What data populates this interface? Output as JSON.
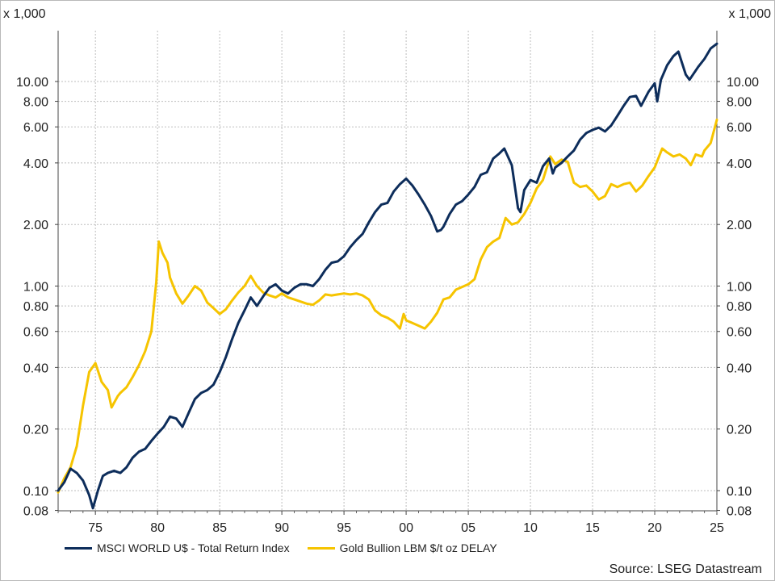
{
  "chart_data": {
    "type": "line",
    "y_scale": "log",
    "y_unit_note_left": "x 1,000",
    "y_unit_note_right": "x 1,000",
    "ylim": [
      0.08,
      16
    ],
    "xlim": [
      1972.0,
      2025.0
    ],
    "y_ticks": [
      {
        "value": 10,
        "label": "10.00"
      },
      {
        "value": 8,
        "label": "8.00"
      },
      {
        "value": 6,
        "label": "6.00"
      },
      {
        "value": 4,
        "label": "4.00"
      },
      {
        "value": 2,
        "label": "2.00"
      },
      {
        "value": 1,
        "label": "1.00"
      },
      {
        "value": 0.8,
        "label": "0.80"
      },
      {
        "value": 0.6,
        "label": "0.60"
      },
      {
        "value": 0.4,
        "label": "0.40"
      },
      {
        "value": 0.2,
        "label": "0.20"
      },
      {
        "value": 0.1,
        "label": "0.10"
      },
      {
        "value": 0.08,
        "label": "0.08"
      }
    ],
    "x_ticks": [
      {
        "value": 1975,
        "label": "75"
      },
      {
        "value": 1980,
        "label": "80"
      },
      {
        "value": 1985,
        "label": "85"
      },
      {
        "value": 1990,
        "label": "90"
      },
      {
        "value": 1995,
        "label": "95"
      },
      {
        "value": 2000,
        "label": "00"
      },
      {
        "value": 2005,
        "label": "05"
      },
      {
        "value": 2010,
        "label": "10"
      },
      {
        "value": 2015,
        "label": "15"
      },
      {
        "value": 2020,
        "label": "20"
      },
      {
        "value": 2025,
        "label": "25"
      }
    ],
    "grid": true,
    "legend_position": "bottom-left",
    "series": [
      {
        "name": "MSCI WORLD U$ - Total Return Index",
        "color": "#0d2d5b",
        "points": [
          [
            1972.0,
            0.1
          ],
          [
            1972.5,
            0.11
          ],
          [
            1973.0,
            0.128
          ],
          [
            1973.5,
            0.122
          ],
          [
            1974.0,
            0.112
          ],
          [
            1974.5,
            0.095
          ],
          [
            1974.8,
            0.082
          ],
          [
            1975.2,
            0.1
          ],
          [
            1975.6,
            0.118
          ],
          [
            1976.0,
            0.122
          ],
          [
            1976.5,
            0.125
          ],
          [
            1977.0,
            0.122
          ],
          [
            1977.5,
            0.13
          ],
          [
            1978.0,
            0.145
          ],
          [
            1978.5,
            0.155
          ],
          [
            1979.0,
            0.16
          ],
          [
            1979.5,
            0.175
          ],
          [
            1980.0,
            0.19
          ],
          [
            1980.5,
            0.205
          ],
          [
            1981.0,
            0.23
          ],
          [
            1981.5,
            0.225
          ],
          [
            1982.0,
            0.205
          ],
          [
            1982.5,
            0.24
          ],
          [
            1983.0,
            0.28
          ],
          [
            1983.5,
            0.3
          ],
          [
            1984.0,
            0.31
          ],
          [
            1984.5,
            0.33
          ],
          [
            1985.0,
            0.38
          ],
          [
            1985.5,
            0.45
          ],
          [
            1986.0,
            0.55
          ],
          [
            1986.5,
            0.66
          ],
          [
            1987.0,
            0.76
          ],
          [
            1987.5,
            0.88
          ],
          [
            1987.8,
            0.83
          ],
          [
            1988.0,
            0.8
          ],
          [
            1988.5,
            0.89
          ],
          [
            1989.0,
            0.98
          ],
          [
            1989.5,
            1.02
          ],
          [
            1990.0,
            0.95
          ],
          [
            1990.5,
            0.92
          ],
          [
            1991.0,
            0.98
          ],
          [
            1991.5,
            1.02
          ],
          [
            1992.0,
            1.02
          ],
          [
            1992.5,
            1.0
          ],
          [
            1993.0,
            1.08
          ],
          [
            1993.5,
            1.2
          ],
          [
            1994.0,
            1.3
          ],
          [
            1994.5,
            1.32
          ],
          [
            1995.0,
            1.4
          ],
          [
            1995.5,
            1.55
          ],
          [
            1996.0,
            1.68
          ],
          [
            1996.5,
            1.8
          ],
          [
            1997.0,
            2.05
          ],
          [
            1997.5,
            2.3
          ],
          [
            1998.0,
            2.5
          ],
          [
            1998.5,
            2.55
          ],
          [
            1999.0,
            2.9
          ],
          [
            1999.5,
            3.15
          ],
          [
            2000.0,
            3.35
          ],
          [
            2000.5,
            3.1
          ],
          [
            2001.0,
            2.8
          ],
          [
            2001.5,
            2.5
          ],
          [
            2002.0,
            2.2
          ],
          [
            2002.5,
            1.85
          ],
          [
            2002.8,
            1.88
          ],
          [
            2003.0,
            1.95
          ],
          [
            2003.5,
            2.25
          ],
          [
            2004.0,
            2.5
          ],
          [
            2004.5,
            2.6
          ],
          [
            2005.0,
            2.8
          ],
          [
            2005.5,
            3.05
          ],
          [
            2006.0,
            3.5
          ],
          [
            2006.5,
            3.6
          ],
          [
            2007.0,
            4.2
          ],
          [
            2007.5,
            4.45
          ],
          [
            2007.9,
            4.7
          ],
          [
            2008.5,
            3.9
          ],
          [
            2009.0,
            2.4
          ],
          [
            2009.2,
            2.3
          ],
          [
            2009.5,
            2.95
          ],
          [
            2010.0,
            3.3
          ],
          [
            2010.5,
            3.2
          ],
          [
            2011.0,
            3.85
          ],
          [
            2011.5,
            4.2
          ],
          [
            2011.8,
            3.55
          ],
          [
            2012.0,
            3.8
          ],
          [
            2012.5,
            4.0
          ],
          [
            2013.0,
            4.3
          ],
          [
            2013.5,
            4.6
          ],
          [
            2014.0,
            5.2
          ],
          [
            2014.5,
            5.6
          ],
          [
            2015.0,
            5.8
          ],
          [
            2015.5,
            5.95
          ],
          [
            2016.0,
            5.7
          ],
          [
            2016.5,
            6.1
          ],
          [
            2017.0,
            6.8
          ],
          [
            2017.5,
            7.6
          ],
          [
            2018.0,
            8.4
          ],
          [
            2018.5,
            8.5
          ],
          [
            2018.9,
            7.6
          ],
          [
            2019.5,
            8.9
          ],
          [
            2020.0,
            9.8
          ],
          [
            2020.2,
            8.0
          ],
          [
            2020.5,
            10.2
          ],
          [
            2021.0,
            12.0
          ],
          [
            2021.5,
            13.3
          ],
          [
            2021.9,
            14.0
          ],
          [
            2022.5,
            10.8
          ],
          [
            2022.8,
            10.2
          ],
          [
            2023.5,
            11.8
          ],
          [
            2024.0,
            12.9
          ],
          [
            2024.5,
            14.5
          ],
          [
            2025.0,
            15.3
          ]
        ]
      },
      {
        "name": "Gold Bullion LBM $/t oz DELAY",
        "color": "#f6c400",
        "points": [
          [
            1972.0,
            0.098
          ],
          [
            1972.5,
            0.115
          ],
          [
            1973.0,
            0.13
          ],
          [
            1973.5,
            0.165
          ],
          [
            1974.0,
            0.26
          ],
          [
            1974.5,
            0.38
          ],
          [
            1975.0,
            0.42
          ],
          [
            1975.5,
            0.34
          ],
          [
            1976.0,
            0.31
          ],
          [
            1976.3,
            0.255
          ],
          [
            1976.8,
            0.29
          ],
          [
            1977.0,
            0.3
          ],
          [
            1977.5,
            0.32
          ],
          [
            1978.0,
            0.36
          ],
          [
            1978.5,
            0.41
          ],
          [
            1979.0,
            0.48
          ],
          [
            1979.5,
            0.6
          ],
          [
            1979.9,
            1.05
          ],
          [
            1980.1,
            1.65
          ],
          [
            1980.4,
            1.45
          ],
          [
            1980.8,
            1.3
          ],
          [
            1981.0,
            1.1
          ],
          [
            1981.5,
            0.92
          ],
          [
            1982.0,
            0.82
          ],
          [
            1982.5,
            0.9
          ],
          [
            1983.0,
            1.0
          ],
          [
            1983.5,
            0.95
          ],
          [
            1984.0,
            0.83
          ],
          [
            1984.5,
            0.78
          ],
          [
            1985.0,
            0.73
          ],
          [
            1985.5,
            0.77
          ],
          [
            1986.0,
            0.85
          ],
          [
            1986.5,
            0.93
          ],
          [
            1987.0,
            1.0
          ],
          [
            1987.5,
            1.12
          ],
          [
            1988.0,
            1.0
          ],
          [
            1988.5,
            0.93
          ],
          [
            1989.0,
            0.9
          ],
          [
            1989.5,
            0.88
          ],
          [
            1990.0,
            0.92
          ],
          [
            1990.5,
            0.88
          ],
          [
            1991.0,
            0.86
          ],
          [
            1991.5,
            0.84
          ],
          [
            1992.0,
            0.82
          ],
          [
            1992.5,
            0.81
          ],
          [
            1993.0,
            0.85
          ],
          [
            1993.5,
            0.91
          ],
          [
            1994.0,
            0.9
          ],
          [
            1994.5,
            0.91
          ],
          [
            1995.0,
            0.92
          ],
          [
            1995.5,
            0.91
          ],
          [
            1996.0,
            0.92
          ],
          [
            1996.5,
            0.9
          ],
          [
            1997.0,
            0.86
          ],
          [
            1997.5,
            0.76
          ],
          [
            1998.0,
            0.72
          ],
          [
            1998.5,
            0.7
          ],
          [
            1999.0,
            0.67
          ],
          [
            1999.5,
            0.62
          ],
          [
            1999.8,
            0.73
          ],
          [
            2000.0,
            0.68
          ],
          [
            2000.5,
            0.66
          ],
          [
            2001.0,
            0.64
          ],
          [
            2001.5,
            0.62
          ],
          [
            2002.0,
            0.67
          ],
          [
            2002.5,
            0.74
          ],
          [
            2003.0,
            0.86
          ],
          [
            2003.5,
            0.88
          ],
          [
            2004.0,
            0.96
          ],
          [
            2004.5,
            0.99
          ],
          [
            2005.0,
            1.02
          ],
          [
            2005.5,
            1.08
          ],
          [
            2006.0,
            1.35
          ],
          [
            2006.5,
            1.55
          ],
          [
            2007.0,
            1.65
          ],
          [
            2007.5,
            1.72
          ],
          [
            2008.0,
            2.15
          ],
          [
            2008.5,
            2.0
          ],
          [
            2009.0,
            2.05
          ],
          [
            2009.5,
            2.25
          ],
          [
            2010.0,
            2.55
          ],
          [
            2010.5,
            3.0
          ],
          [
            2011.0,
            3.3
          ],
          [
            2011.6,
            4.3
          ],
          [
            2012.0,
            3.95
          ],
          [
            2012.5,
            4.15
          ],
          [
            2013.0,
            4.05
          ],
          [
            2013.5,
            3.2
          ],
          [
            2014.0,
            3.05
          ],
          [
            2014.5,
            3.1
          ],
          [
            2015.0,
            2.9
          ],
          [
            2015.5,
            2.65
          ],
          [
            2016.0,
            2.75
          ],
          [
            2016.5,
            3.15
          ],
          [
            2017.0,
            3.05
          ],
          [
            2017.5,
            3.15
          ],
          [
            2018.0,
            3.2
          ],
          [
            2018.5,
            2.9
          ],
          [
            2019.0,
            3.1
          ],
          [
            2019.5,
            3.45
          ],
          [
            2020.0,
            3.8
          ],
          [
            2020.6,
            4.7
          ],
          [
            2021.0,
            4.5
          ],
          [
            2021.5,
            4.3
          ],
          [
            2022.0,
            4.4
          ],
          [
            2022.5,
            4.2
          ],
          [
            2022.9,
            3.9
          ],
          [
            2023.3,
            4.4
          ],
          [
            2023.8,
            4.3
          ],
          [
            2024.0,
            4.6
          ],
          [
            2024.5,
            5.0
          ],
          [
            2025.0,
            6.5
          ]
        ]
      }
    ],
    "source": "Source: LSEG Datastream"
  }
}
